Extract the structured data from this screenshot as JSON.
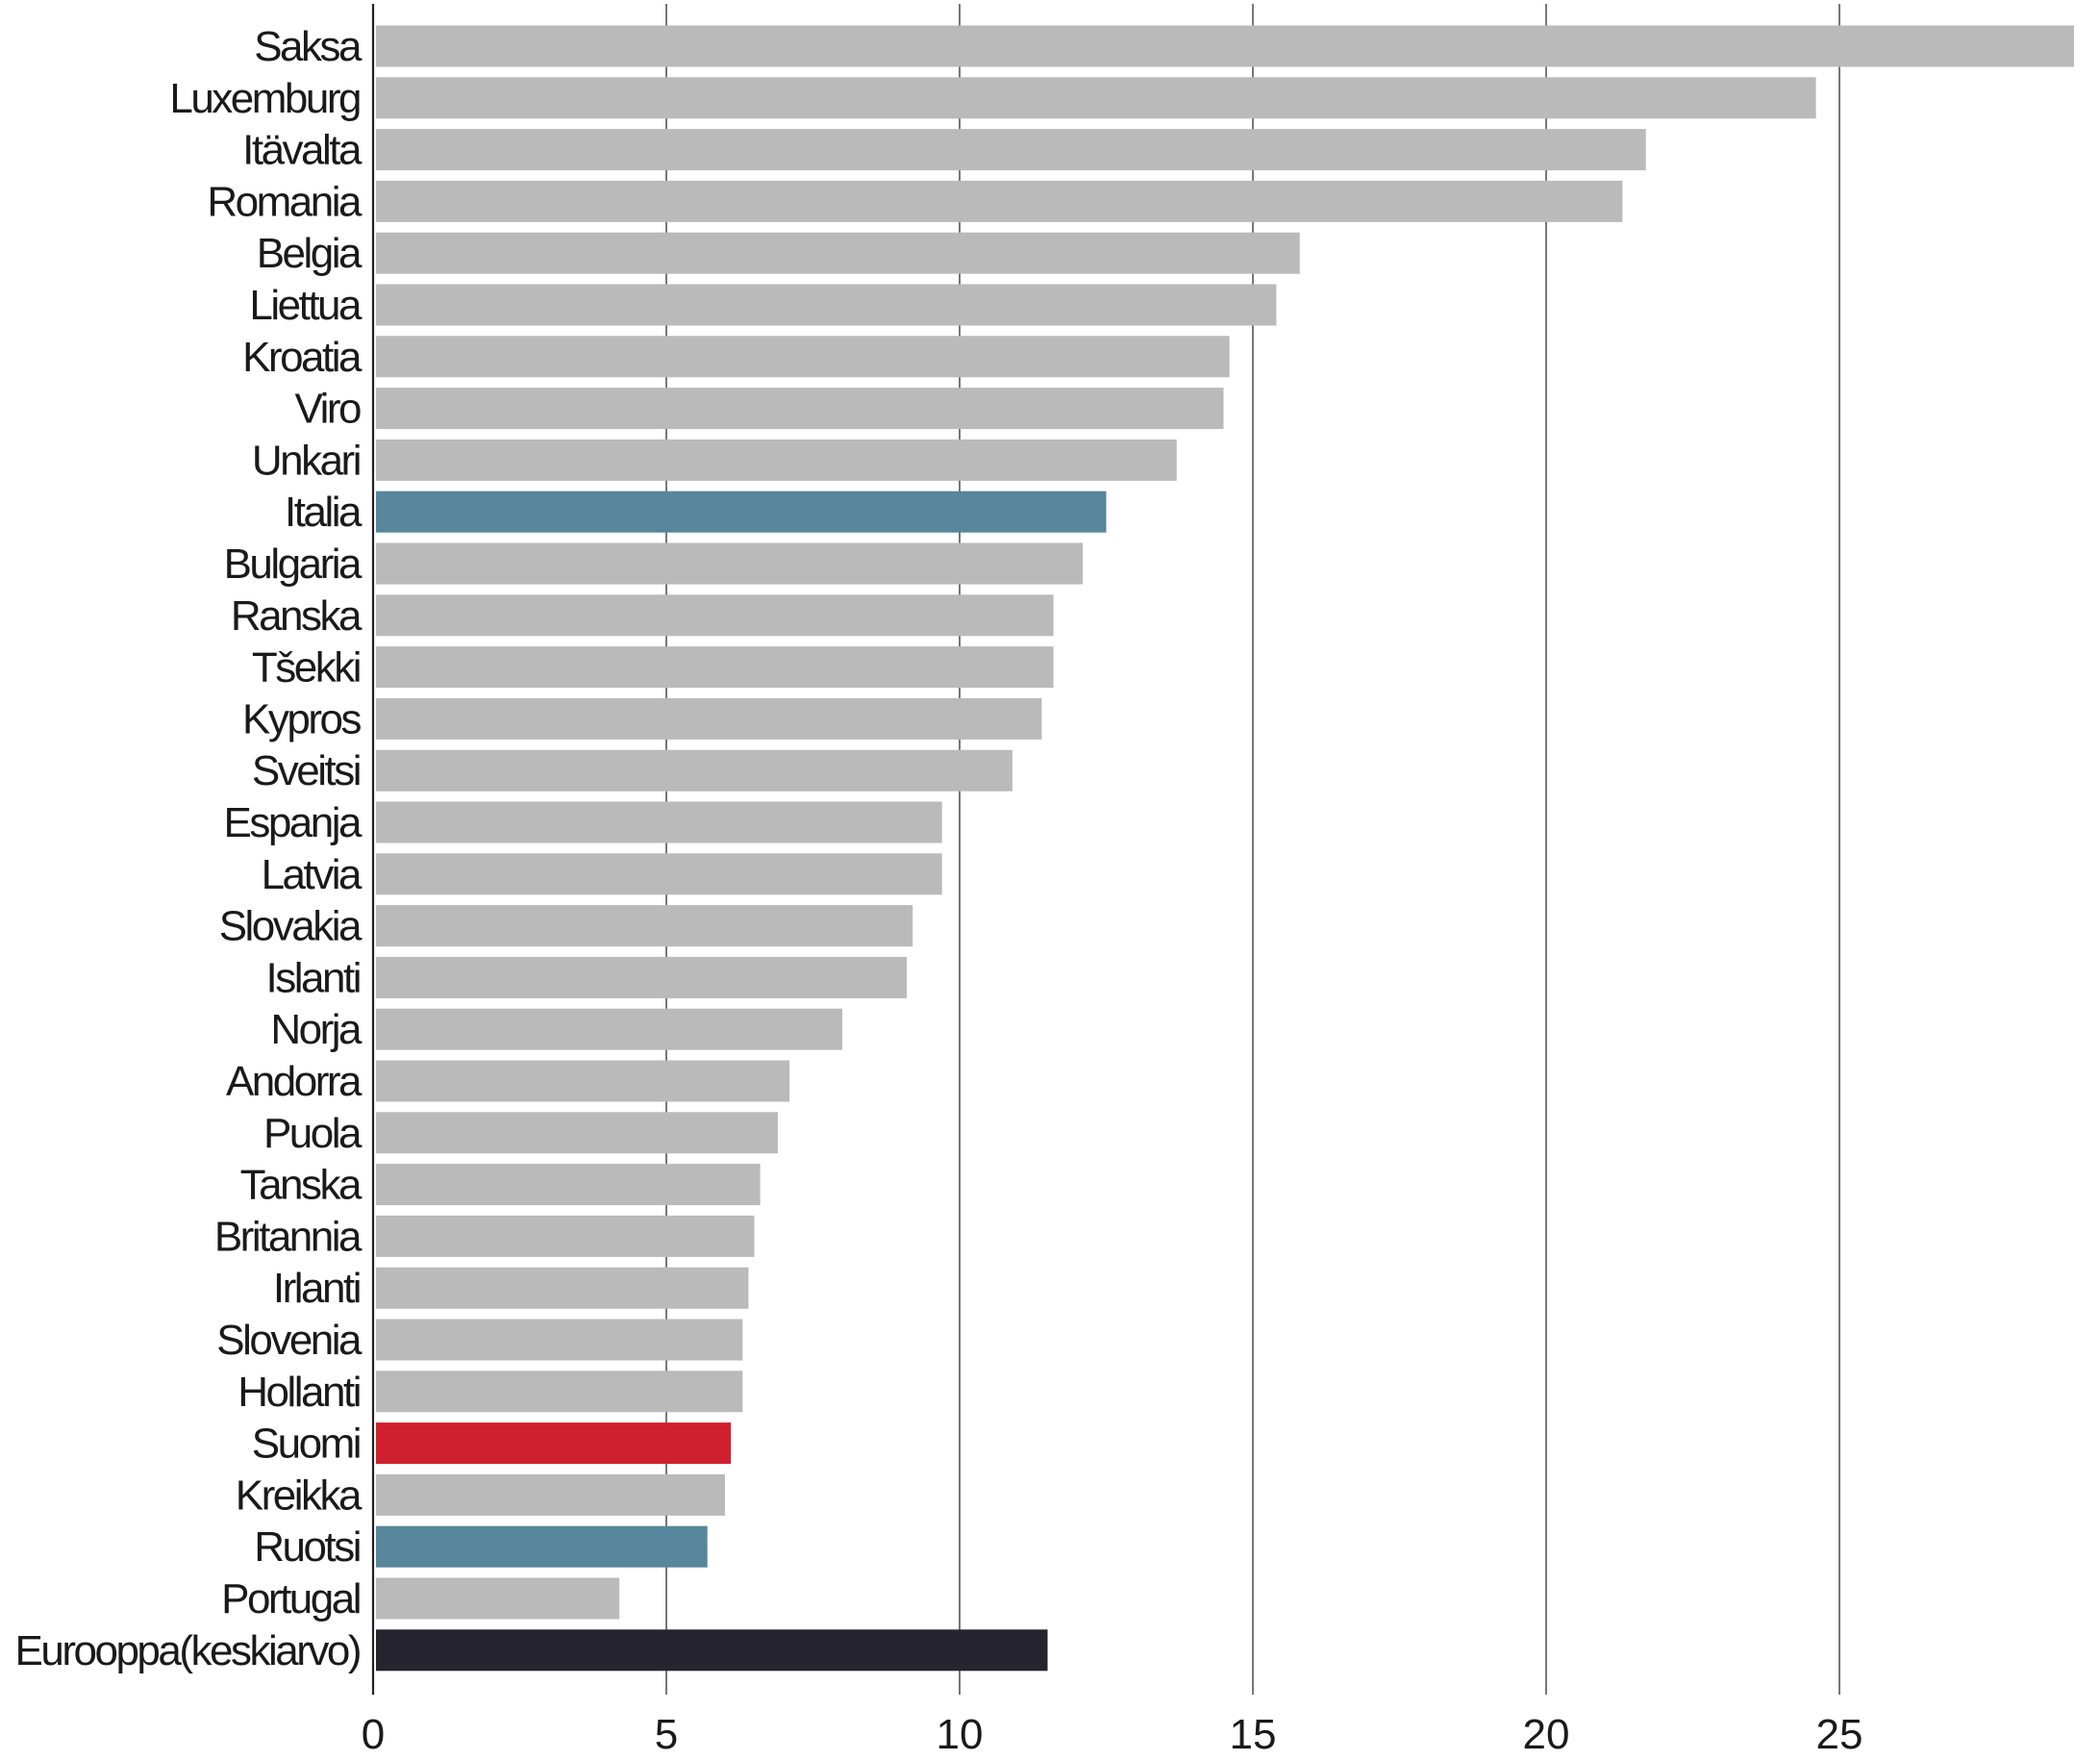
{
  "chart_data": {
    "type": "bar",
    "orientation": "horizontal",
    "title": "",
    "xlabel": "",
    "ylabel": "",
    "xlim": [
      0,
      29
    ],
    "x_ticks": [
      0,
      5,
      10,
      15,
      20,
      25
    ],
    "grid": true,
    "categories": [
      "Saksa",
      "Luxemburg",
      "Itävalta",
      "Romania",
      "Belgia",
      "Liettua",
      "Kroatia",
      "Viro",
      "Unkari",
      "Italia",
      "Bulgaria",
      "Ranska",
      "Tšekki",
      "Kypros",
      "Sveitsi",
      "Espanja",
      "Latvia",
      "Slovakia",
      "Islanti",
      "Norja",
      "Andorra",
      "Puola",
      "Tanska",
      "Britannia",
      "Irlanti",
      "Slovenia",
      "Hollanti",
      "Suomi",
      "Kreikka",
      "Ruotsi",
      "Portugal",
      "Eurooppa(keskiarvo)"
    ],
    "values": [
      29.0,
      24.6,
      21.7,
      21.3,
      15.8,
      15.4,
      14.6,
      14.5,
      13.7,
      12.5,
      12.1,
      11.6,
      11.6,
      11.4,
      10.9,
      9.7,
      9.7,
      9.2,
      9.1,
      8.0,
      7.1,
      6.9,
      6.6,
      6.5,
      6.4,
      6.3,
      6.3,
      6.1,
      6.0,
      5.7,
      4.2,
      11.5
    ],
    "colors": [
      "#bababa",
      "#bababa",
      "#bababa",
      "#bababa",
      "#bababa",
      "#bababa",
      "#bababa",
      "#bababa",
      "#bababa",
      "#58869c",
      "#bababa",
      "#bababa",
      "#bababa",
      "#bababa",
      "#bababa",
      "#bababa",
      "#bababa",
      "#bababa",
      "#bababa",
      "#bababa",
      "#bababa",
      "#bababa",
      "#bababa",
      "#bababa",
      "#bababa",
      "#bababa",
      "#bababa",
      "#d0202d",
      "#bababa",
      "#58869c",
      "#bababa",
      "#26242e"
    ]
  }
}
